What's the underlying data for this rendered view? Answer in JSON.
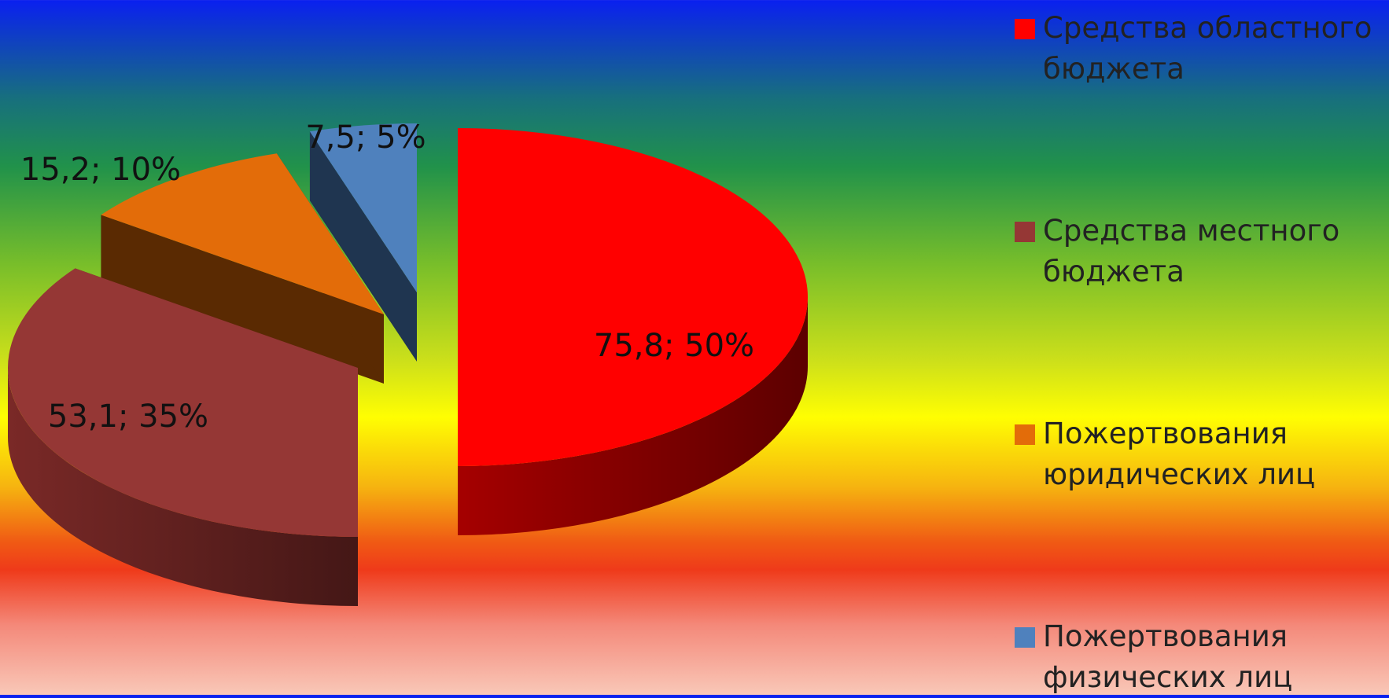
{
  "chart_data": {
    "type": "pie",
    "title": "",
    "slices": [
      {
        "name": "Средства областного бюджета",
        "value": 75.8,
        "percent": 50,
        "label": "75,8; 50%",
        "color": "#ff0000",
        "side_color": "#7a0000"
      },
      {
        "name": "Средства местного бюджета",
        "value": 53.1,
        "percent": 35,
        "label": "53,1; 35%",
        "color": "#953735",
        "side_color": "#5a1e1d"
      },
      {
        "name": "Пожертвования юридических лиц",
        "value": 15.2,
        "percent": 10,
        "label": "15,2; 10%",
        "color": "#e36c09",
        "side_color": "#5a2a02"
      },
      {
        "name": "Пожертвования физических лиц",
        "value": 7.5,
        "percent": 5,
        "label": "7,5; 5%",
        "color": "#4f81bd",
        "side_color": "#1f3550"
      }
    ],
    "legend": {
      "position": "right",
      "items": [
        {
          "label": "Средства областного бюджета",
          "color": "#ff0000"
        },
        {
          "label": "Средства местного бюджета",
          "color": "#953735"
        },
        {
          "label": "Пожертвования юридических лиц",
          "color": "#e36c09"
        },
        {
          "label": "Пожертвования физических лиц",
          "color": "#4f81bd"
        }
      ]
    },
    "style": "3d-exploded"
  }
}
